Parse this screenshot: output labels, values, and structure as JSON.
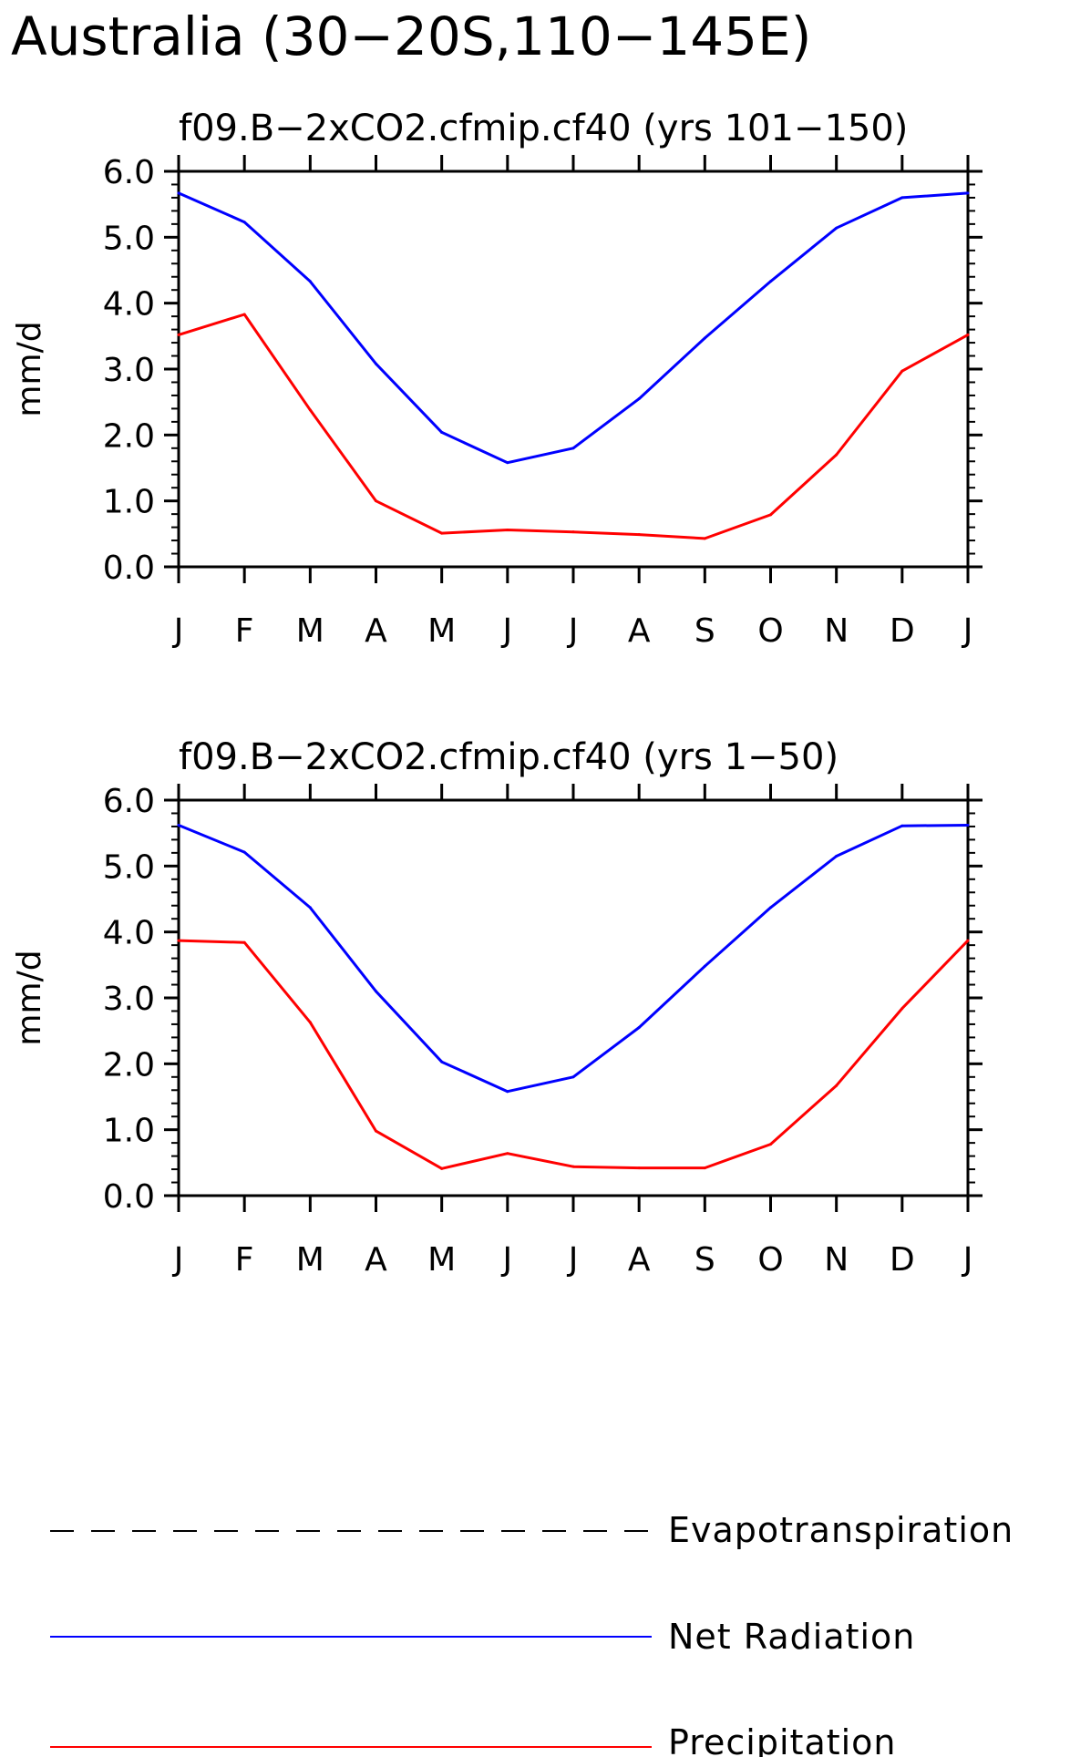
{
  "title": "Australia (30−20S,110−145E)",
  "colors": {
    "net_radiation": "#0000ff",
    "precipitation": "#ff0000",
    "evapotranspiration": "#000000",
    "axes": "#000000"
  },
  "legend": {
    "items": [
      {
        "name": "Evapotranspiration",
        "style": "dashed",
        "color": "#000000"
      },
      {
        "name": "Net Radiation",
        "style": "solid",
        "color": "#0000ff"
      },
      {
        "name": "Precipitation",
        "style": "solid",
        "color": "#ff0000"
      }
    ]
  },
  "chart_data": [
    {
      "type": "line",
      "title": "f09.B−2xCO2.cfmip.cf40 (yrs 101−150)",
      "xlabel": "",
      "ylabel": "mm/d",
      "categories": [
        "J",
        "F",
        "M",
        "A",
        "M",
        "J",
        "J",
        "A",
        "S",
        "O",
        "N",
        "D",
        "J"
      ],
      "ylim": [
        0,
        6
      ],
      "yticks": [
        "0.0",
        "1.0",
        "2.0",
        "3.0",
        "4.0",
        "5.0",
        "6.0"
      ],
      "grid": false,
      "series": [
        {
          "name": "Net Radiation",
          "color": "#0000ff",
          "values": [
            5.67,
            5.23,
            4.33,
            3.08,
            2.04,
            1.58,
            1.8,
            2.55,
            3.47,
            4.33,
            5.14,
            5.6,
            5.67
          ]
        },
        {
          "name": "Precipitation",
          "color": "#ff0000",
          "values": [
            3.52,
            3.83,
            2.38,
            1.0,
            0.51,
            0.56,
            0.53,
            0.49,
            0.43,
            0.79,
            1.7,
            2.97,
            3.52
          ]
        }
      ]
    },
    {
      "type": "line",
      "title": "f09.B−2xCO2.cfmip.cf40 (yrs 1−50)",
      "xlabel": "",
      "ylabel": "mm/d",
      "categories": [
        "J",
        "F",
        "M",
        "A",
        "M",
        "J",
        "J",
        "A",
        "S",
        "O",
        "N",
        "D",
        "J"
      ],
      "ylim": [
        0,
        6
      ],
      "yticks": [
        "0.0",
        "1.0",
        "2.0",
        "3.0",
        "4.0",
        "5.0",
        "6.0"
      ],
      "grid": false,
      "series": [
        {
          "name": "Net Radiation",
          "color": "#0000ff",
          "values": [
            5.62,
            5.21,
            4.37,
            3.1,
            2.03,
            1.58,
            1.8,
            2.55,
            3.48,
            4.37,
            5.15,
            5.61,
            5.62
          ]
        },
        {
          "name": "Precipitation",
          "color": "#ff0000",
          "values": [
            3.87,
            3.84,
            2.63,
            0.98,
            0.41,
            0.64,
            0.44,
            0.42,
            0.42,
            0.78,
            1.67,
            2.84,
            3.87
          ]
        }
      ]
    }
  ]
}
